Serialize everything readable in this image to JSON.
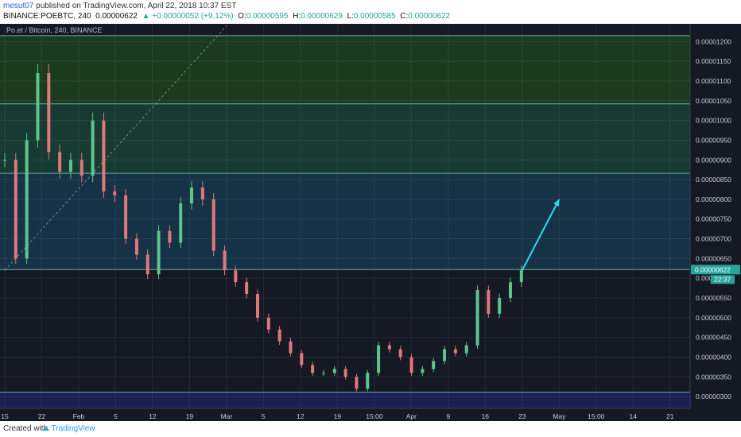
{
  "header": {
    "author": "mesut07",
    "published_text": " published on TradingView.com, April 22, 2018 10:37 EST",
    "symbol_line": "BINANCE:POEBTC, 240",
    "last": "0.00000622",
    "change_arrow": "▲",
    "change": "+0.00000052 (+9.12%)",
    "o_label": "O:",
    "o_value": "0.00000595",
    "h_label": "H:",
    "h_value": "0.00000629",
    "l_label": "L:",
    "l_value": "0.00000585",
    "c_label": "C:",
    "c_value": "0.00000622"
  },
  "footer": {
    "created_with": "Created with",
    "brand": "TradingView"
  },
  "colors": {
    "background": "#151924",
    "up": "#5ec48d",
    "down": "#e0787a",
    "zone_top": "#1b3b1f",
    "zone_upper": "#173a32",
    "zone_mid": "#163246",
    "zone_bottom": "#1b1f55",
    "arrow": "#2fd8f0",
    "price_badge": "#26a69a",
    "axis_text": "#c8ccd4"
  },
  "chart_data": {
    "type": "candlestick",
    "title": "Po.et / Bitcoin, 240, BINANCE",
    "current_price_label": "0.00000622",
    "countdown_label": "22:37",
    "y_ticks": [
      "0.00001200",
      "0.00001150",
      "0.00001100",
      "0.00001050",
      "0.00001000",
      "0.00000950",
      "0.00000900",
      "0.00000850",
      "0.00000800",
      "0.00000750",
      "0.00000700",
      "0.00000650",
      "0.00000600",
      "0.00000550",
      "0.00000500",
      "0.00000450",
      "0.00000400",
      "0.00000350",
      "0.00000300"
    ],
    "x_ticks": [
      "15",
      "22",
      "Feb",
      "5",
      "12",
      "19",
      "Mar",
      "5",
      "12",
      "19",
      "15:00",
      "Apr",
      "9",
      "16",
      "23",
      "May",
      "15:00",
      "14",
      "21"
    ],
    "ylim": [
      2.7e-06,
      1.245e-05
    ],
    "horizontal_levels": [
      1.215e-05,
      1.042e-05,
      8.66e-06,
      6.22e-06,
      3.11e-06
    ],
    "zones": [
      {
        "from": 1.042e-05,
        "to": 1.215e-05,
        "color_key": "zone_top"
      },
      {
        "from": 8.66e-06,
        "to": 1.042e-05,
        "color_key": "zone_upper"
      },
      {
        "from": 6.22e-06,
        "to": 8.66e-06,
        "color_key": "zone_mid"
      },
      {
        "from": 2.7e-06,
        "to": 3.11e-06,
        "color_key": "zone_bottom"
      }
    ],
    "trend_dashed": {
      "from": [
        "15",
        6.2e-06
      ],
      "to": [
        "Mar",
        1.24e-05
      ]
    },
    "projection_arrow": {
      "from": [
        "23",
        6.2e-06
      ],
      "to": [
        "May",
        8e-06
      ]
    },
    "series": [
      {
        "x": "15",
        "close": 9e-06
      },
      {
        "x": "17",
        "close": 6.5e-06
      },
      {
        "x": "19",
        "close": 9.5e-06
      },
      {
        "x": "20",
        "close": 1.12e-05
      },
      {
        "x": "22",
        "close": 9.2e-06
      },
      {
        "x": "24",
        "close": 8.7e-06
      },
      {
        "x": "26",
        "close": 9e-06
      },
      {
        "x": "28",
        "close": 8.6e-06
      },
      {
        "x": "30",
        "close": 1e-05
      },
      {
        "x": "31",
        "close": 8.2e-06
      },
      {
        "x": "Feb",
        "close": 8.1e-06
      },
      {
        "x": "3",
        "close": 7e-06
      },
      {
        "x": "5",
        "close": 6.6e-06
      },
      {
        "x": "7",
        "close": 6.1e-06
      },
      {
        "x": "9",
        "close": 7.2e-06
      },
      {
        "x": "11",
        "close": 6.9e-06
      },
      {
        "x": "12",
        "close": 7.9e-06
      },
      {
        "x": "14",
        "close": 8.3e-06
      },
      {
        "x": "16",
        "close": 8e-06
      },
      {
        "x": "19",
        "close": 6.7e-06
      },
      {
        "x": "21",
        "close": 6.2e-06
      },
      {
        "x": "24",
        "close": 5.9e-06
      },
      {
        "x": "26",
        "close": 5.6e-06
      },
      {
        "x": "28",
        "close": 5e-06
      },
      {
        "x": "Mar",
        "close": 4.7e-06
      },
      {
        "x": "3",
        "close": 4.4e-06
      },
      {
        "x": "5",
        "close": 4.1e-06
      },
      {
        "x": "7",
        "close": 3.8e-06
      },
      {
        "x": "9",
        "close": 3.6e-06
      },
      {
        "x": "12",
        "close": 3.6e-06
      },
      {
        "x": "14",
        "close": 3.7e-06
      },
      {
        "x": "16",
        "close": 3.5e-06
      },
      {
        "x": "19",
        "close": 3.2e-06
      },
      {
        "x": "21",
        "close": 3.6e-06
      },
      {
        "x": "24",
        "close": 4.3e-06
      },
      {
        "x": "26",
        "close": 4.2e-06
      },
      {
        "x": "28",
        "close": 4e-06
      },
      {
        "x": "31",
        "close": 3.6e-06
      },
      {
        "x": "Apr",
        "close": 3.7e-06
      },
      {
        "x": "4",
        "close": 3.9e-06
      },
      {
        "x": "7",
        "close": 4.2e-06
      },
      {
        "x": "9",
        "close": 4.1e-06
      },
      {
        "x": "11",
        "close": 4.3e-06
      },
      {
        "x": "13",
        "close": 5.7e-06
      },
      {
        "x": "16",
        "close": 5.1e-06
      },
      {
        "x": "18",
        "close": 5.5e-06
      },
      {
        "x": "20",
        "close": 5.9e-06
      },
      {
        "x": "22",
        "close": 6.2e-06
      }
    ]
  }
}
